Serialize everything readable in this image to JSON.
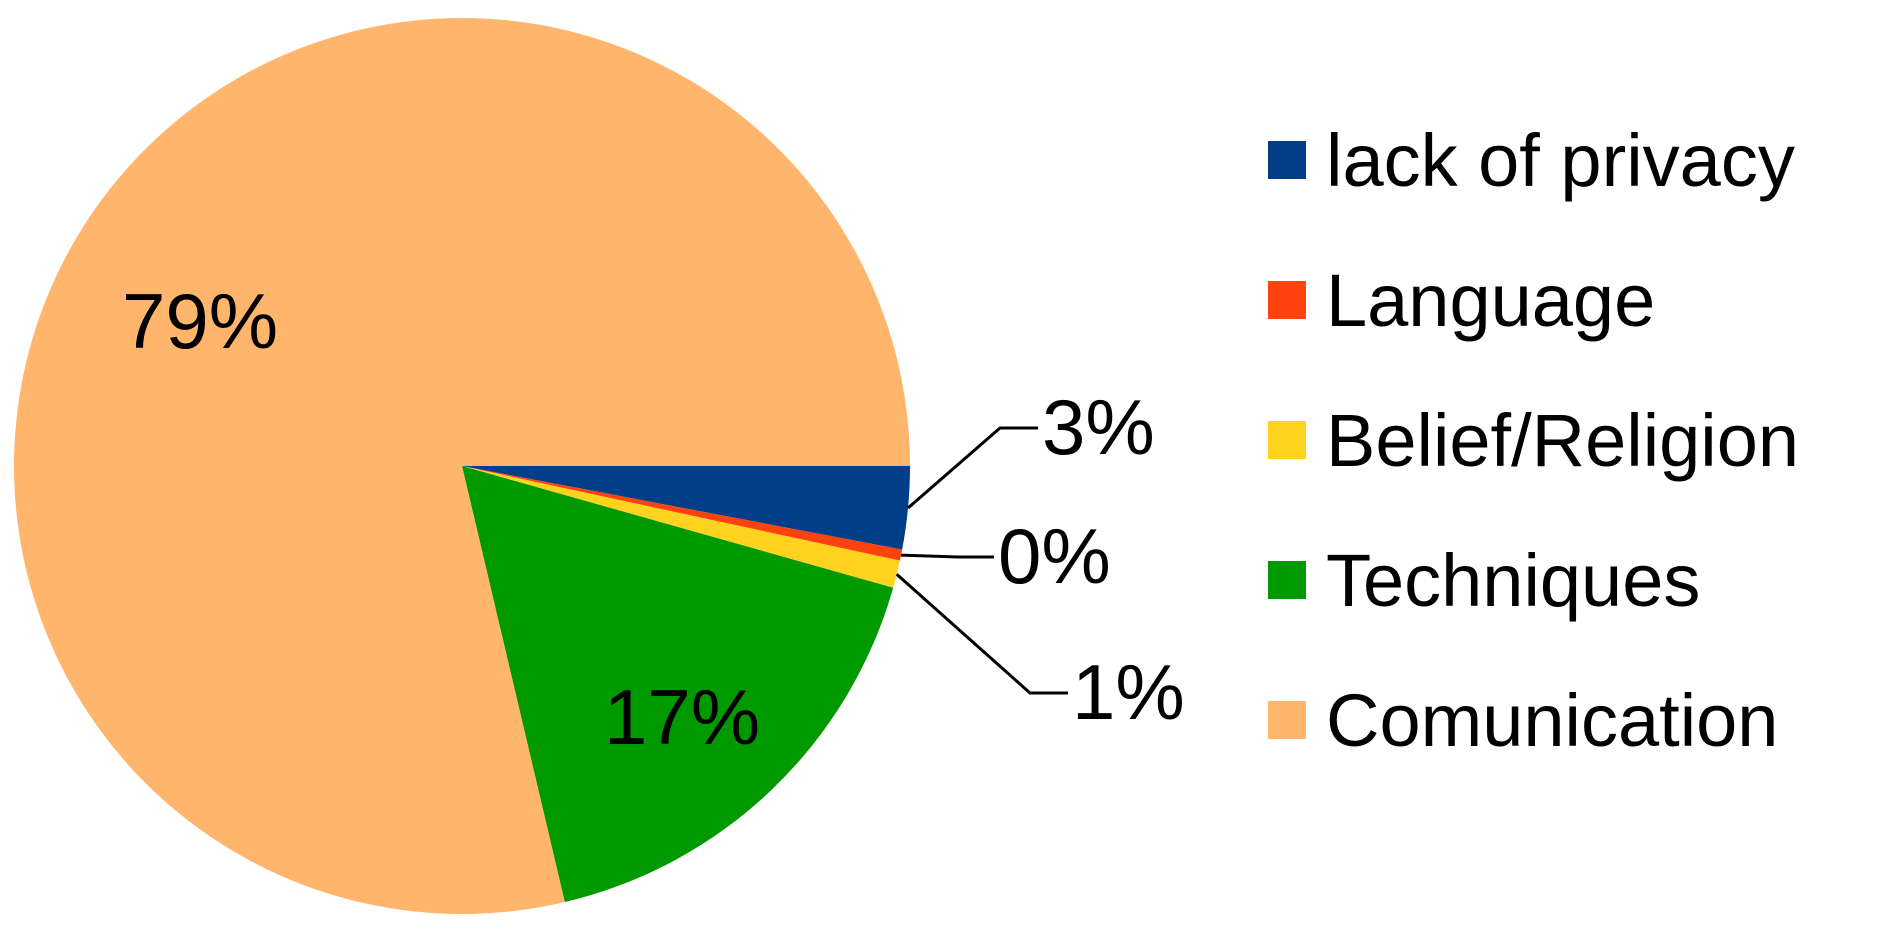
{
  "chart_data": {
    "type": "pie",
    "title": "",
    "legend_position": "right",
    "slices": [
      {
        "label": "lack of privacy",
        "value": 3,
        "value_label": "3%",
        "color": "#003F87"
      },
      {
        "label": "Language",
        "value": 0.4,
        "value_label": "0%",
        "color": "#FF420E"
      },
      {
        "label": "Belief/Religion",
        "value": 1,
        "value_label": "1%",
        "color": "#FFD320"
      },
      {
        "label": "Techniques",
        "value": 17,
        "value_label": "17%",
        "color": "#009900"
      },
      {
        "label": "Comunication",
        "value": 79,
        "value_label": "79%",
        "color": "#FFB66C"
      }
    ]
  }
}
